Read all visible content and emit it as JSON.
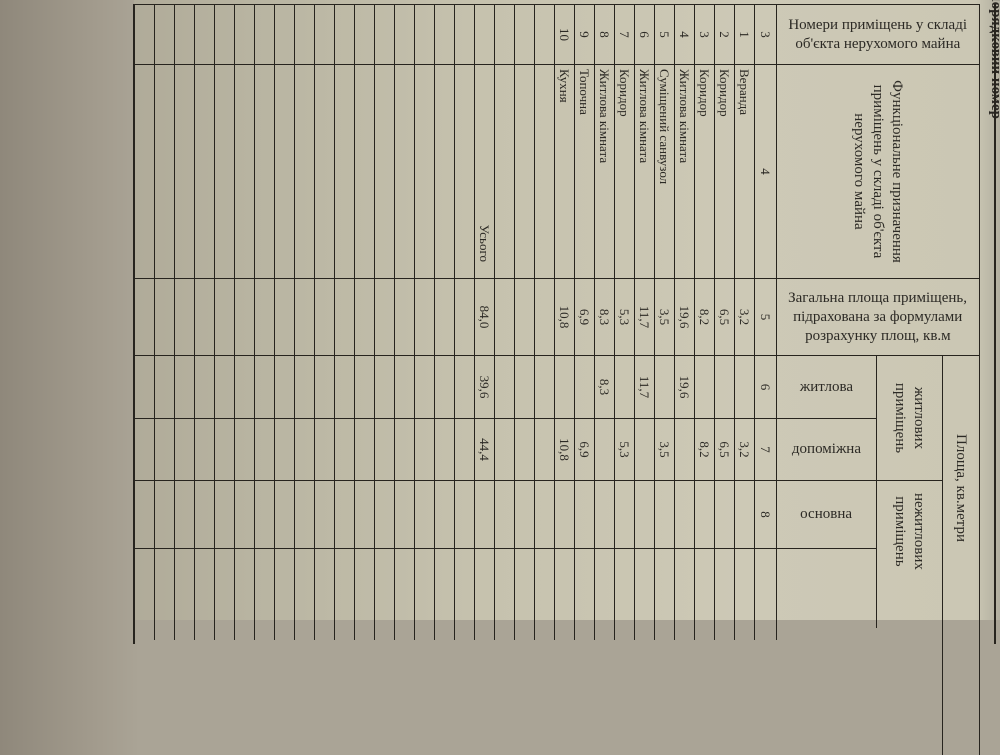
{
  "corner_label": "Порядковий номер",
  "headers": {
    "room_numbers": "Номери приміщень у складі\nоб'єкта нерухомого майна",
    "function": "Функціональне призначення\nприміщень у складі об'єкта\nнерухомого майна",
    "total_area": "Загальна площа приміщень,\nпідрахована за формулами\nрозрахунку площ, кв.м",
    "area": "Площа, кв.метри",
    "residential": "житлових\nприміщень",
    "non_residential": "нежитлових\nприміщень",
    "living": "житлова",
    "auxiliary": "допоміжна",
    "main": "основна"
  },
  "column_numbers": [
    "3",
    "4",
    "5",
    "6",
    "7",
    "8",
    ""
  ],
  "rooms": [
    {
      "no": "1",
      "name": "Веранда",
      "total": "3,2",
      "living": "",
      "auxiliary": "3,2",
      "main": ""
    },
    {
      "no": "2",
      "name": "Коридор",
      "total": "6,5",
      "living": "",
      "auxiliary": "6,5",
      "main": ""
    },
    {
      "no": "3",
      "name": "Коридор",
      "total": "8,2",
      "living": "",
      "auxiliary": "8,2",
      "main": ""
    },
    {
      "no": "4",
      "name": "Житлова кімната",
      "total": "19,6",
      "living": "19,6",
      "auxiliary": "",
      "main": ""
    },
    {
      "no": "5",
      "name": "Суміщений санвузол",
      "total": "3,5",
      "living": "",
      "auxiliary": "3,5",
      "main": ""
    },
    {
      "no": "6",
      "name": "Житлова кімната",
      "total": "11,7",
      "living": "11,7",
      "auxiliary": "",
      "main": ""
    },
    {
      "no": "7",
      "name": "Коридор",
      "total": "5,3",
      "living": "",
      "auxiliary": "5,3",
      "main": ""
    },
    {
      "no": "8",
      "name": "Житлова кімната",
      "total": "8,3",
      "living": "8,3",
      "auxiliary": "",
      "main": ""
    },
    {
      "no": "9",
      "name": "Топочна",
      "total": "6,9",
      "living": "",
      "auxiliary": "6,9",
      "main": ""
    },
    {
      "no": "10",
      "name": "Кухня",
      "total": "10,8",
      "living": "",
      "auxiliary": "10,8",
      "main": ""
    }
  ],
  "total": {
    "label": "Усього",
    "total": "84,0",
    "living": "39,6",
    "auxiliary": "44,4",
    "main": ""
  }
}
